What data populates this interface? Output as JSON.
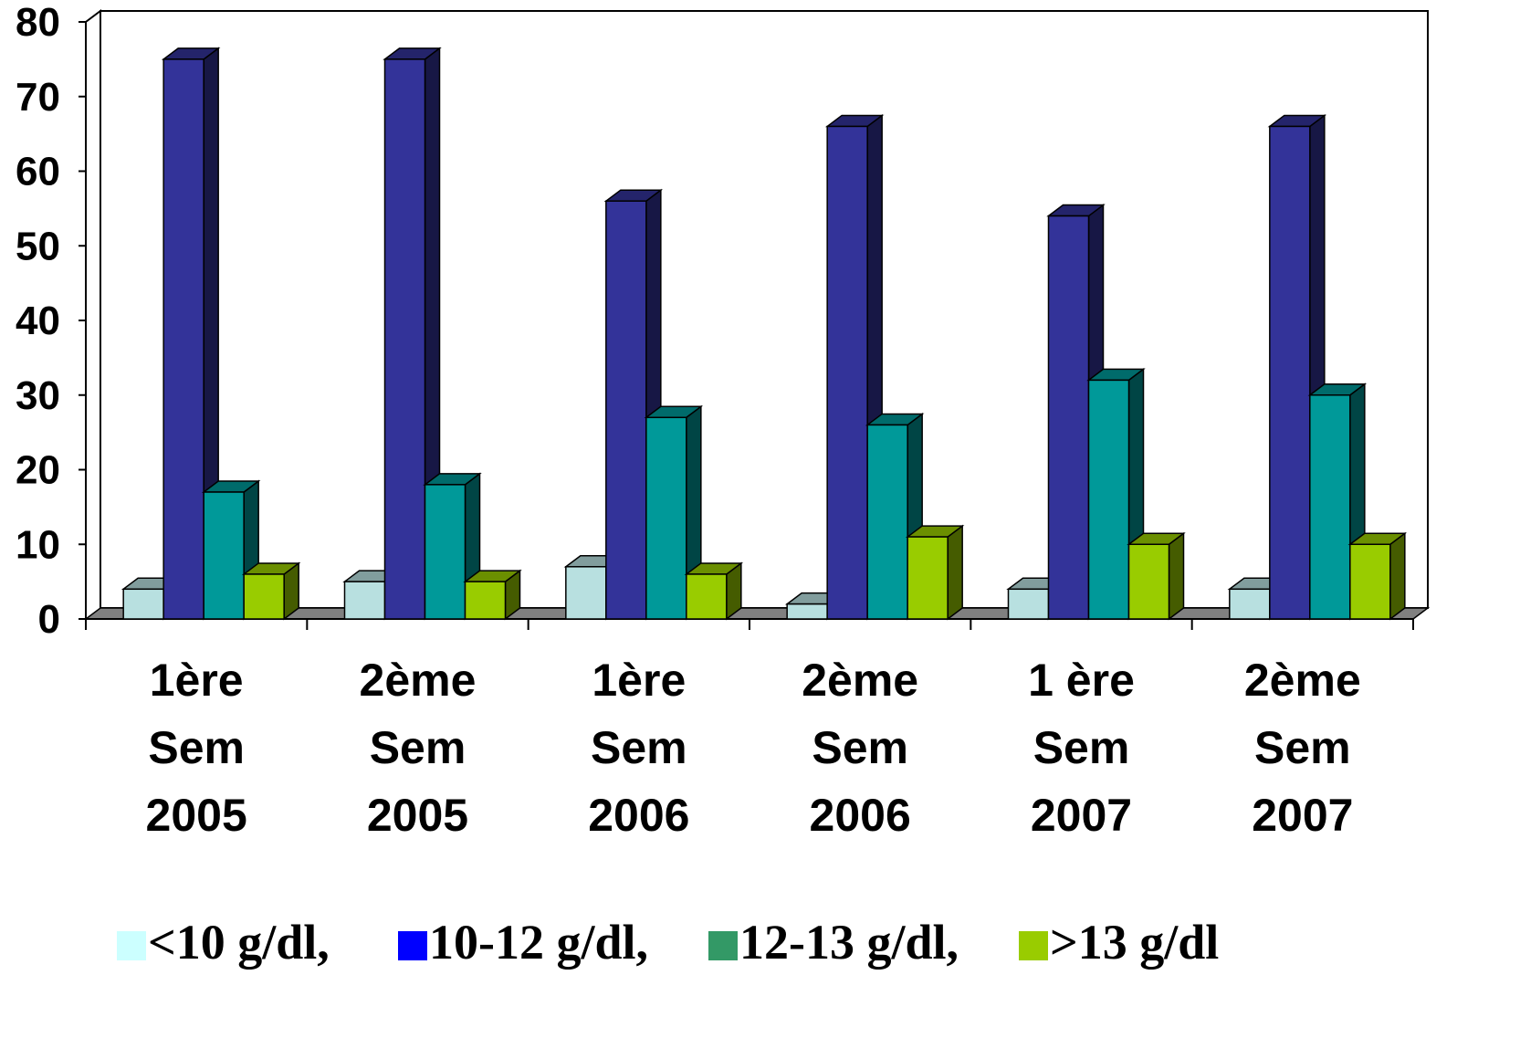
{
  "chart_data": {
    "type": "bar",
    "title": "",
    "xlabel": "",
    "ylabel": "",
    "ylim": [
      0,
      80
    ],
    "yticks": [
      0,
      10,
      20,
      30,
      40,
      50,
      60,
      70,
      80
    ],
    "grid": false,
    "legend_position": "bottom",
    "categories": [
      [
        "1ère",
        "Sem",
        "2005"
      ],
      [
        "2ème",
        "Sem",
        "2005"
      ],
      [
        "1ère",
        "Sem",
        "2006"
      ],
      [
        "2ème",
        "Sem",
        "2006"
      ],
      [
        "1 ère",
        "Sem",
        "2007"
      ],
      [
        "2ème",
        "Sem",
        "2007"
      ]
    ],
    "series": [
      {
        "name": "<10 g/dl,",
        "color": "#b8e0e0",
        "legend_color": "#ccffff",
        "values": [
          4,
          5,
          7,
          2,
          4,
          4
        ]
      },
      {
        "name": "10-12 g/dl,",
        "color": "#333399",
        "legend_color": "#0000ff",
        "values": [
          75,
          75,
          56,
          66,
          54,
          66
        ]
      },
      {
        "name": "12-13 g/dl,",
        "color": "#009999",
        "legend_color": "#339966",
        "values": [
          17,
          18,
          27,
          26,
          32,
          30
        ]
      },
      {
        "name": ">13 g/dl",
        "color": "#99cc00",
        "legend_color": "#99cc00",
        "values": [
          6,
          5,
          6,
          11,
          10,
          10
        ]
      }
    ]
  }
}
